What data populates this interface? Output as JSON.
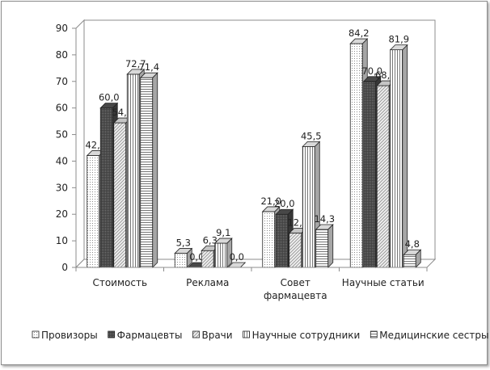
{
  "chart_data": {
    "type": "bar",
    "style": "3d-clustered-column",
    "categories": [
      [
        "Стоимость"
      ],
      [
        "Реклама"
      ],
      [
        "Совет",
        "фармацевта"
      ],
      [
        "Научные статьи"
      ]
    ],
    "series": [
      {
        "name": "Провизоры",
        "values": [
          42.1,
          5.3,
          21.0,
          84.2
        ],
        "labels": [
          "42,1",
          "5,3",
          "21,0",
          "84,2"
        ],
        "pattern": "dots",
        "color": "#ffffff"
      },
      {
        "name": "Фармацевты",
        "values": [
          60.0,
          0.0,
          20.0,
          70.0
        ],
        "labels": [
          "60,0",
          "0,0",
          "20,0",
          "70,0"
        ],
        "pattern": "dark",
        "color": "#555555"
      },
      {
        "name": "Врачи",
        "values": [
          54.4,
          6.3,
          12.9,
          68.4
        ],
        "labels": [
          "54,4",
          "6,3",
          "12,9",
          "68,4"
        ],
        "pattern": "diag",
        "color": "#e8e8e8"
      },
      {
        "name": "Научные сотрудники",
        "values": [
          72.7,
          9.1,
          45.5,
          81.9
        ],
        "labels": [
          "72,7",
          "9,1",
          "45,5",
          "81,9"
        ],
        "pattern": "vert",
        "color": "#ffffff"
      },
      {
        "name": "Медицинские сестры",
        "values": [
          71.4,
          0.0,
          14.3,
          4.8
        ],
        "labels": [
          "71,4",
          "0,0",
          "14,3",
          "4,8"
        ],
        "pattern": "horiz",
        "color": "#ffffff"
      }
    ],
    "y_ticks": [
      "0",
      "10",
      "20",
      "30",
      "40",
      "50",
      "60",
      "70",
      "80",
      "90"
    ],
    "ylim": [
      0,
      90
    ],
    "grid": false,
    "legend": "bottom"
  }
}
